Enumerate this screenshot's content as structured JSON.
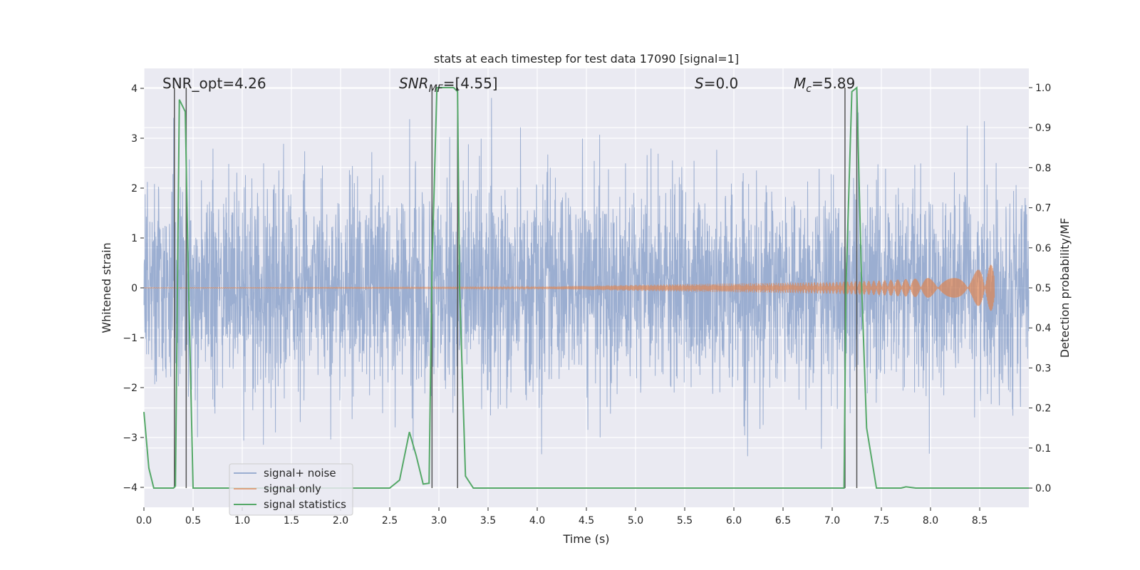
{
  "chart_data": {
    "type": "line",
    "title": "stats at each timestep for test data 17090 [signal=1]",
    "xlabel": "Time (s)",
    "ylabel": "Whitened strain",
    "y2label": "Detection probability/MF",
    "xlim": [
      0.0,
      9.0
    ],
    "ylim": [
      -4.4,
      4.4
    ],
    "y2lim": [
      -0.048,
      1.048
    ],
    "grid": true,
    "legend_position": "lower-left",
    "x_ticks": [
      "0.0",
      "0.5",
      "1.0",
      "1.5",
      "2.0",
      "2.5",
      "3.0",
      "3.5",
      "4.0",
      "4.5",
      "5.0",
      "5.5",
      "6.0",
      "6.5",
      "7.0",
      "7.5",
      "8.0",
      "8.5"
    ],
    "y_ticks": [
      "4",
      "3",
      "2",
      "1",
      "0",
      "−1",
      "−2",
      "−3",
      "−4"
    ],
    "y2_ticks": [
      "1.0",
      "0.9",
      "0.8",
      "0.7",
      "0.6",
      "0.5",
      "0.4",
      "0.3",
      "0.2",
      "0.1",
      "0.0"
    ],
    "annotations": {
      "snr_opt": "SNR_opt=4.26",
      "snr_mf_base": "SNR",
      "snr_mf_sub": "MF",
      "snr_mf_value": "=[4.55]",
      "s_symbol": "S",
      "s_value": "=0.0",
      "mc_symbol": "M",
      "mc_sub": "c",
      "mc_value": "=5.89"
    },
    "series": [
      {
        "name": "signal+ noise",
        "color": "#4c72b0",
        "axis": "left",
        "description_kind": "noise",
        "amplitude_range": [
          -3.6,
          4.0
        ],
        "x_range": [
          0.0,
          9.0
        ]
      },
      {
        "name": "signal only",
        "color": "#dd8452",
        "axis": "left",
        "kind": "chirp",
        "x_range": [
          0.0,
          8.65
        ],
        "envelope": {
          "x": [
            0.0,
            4.0,
            5.0,
            6.0,
            7.0,
            7.5,
            8.0,
            8.4,
            8.6,
            8.65
          ],
          "y": [
            0.005,
            0.02,
            0.06,
            0.09,
            0.12,
            0.15,
            0.2,
            0.3,
            0.45,
            0.5
          ]
        }
      },
      {
        "name": "signal statistics",
        "color": "#55a868",
        "axis": "right",
        "x": [
          0.0,
          0.05,
          0.1,
          0.2,
          0.3,
          0.32,
          0.36,
          0.42,
          0.45,
          0.5,
          1.0,
          2.0,
          2.5,
          2.6,
          2.7,
          2.77,
          2.84,
          2.9,
          2.93,
          2.98,
          3.02,
          3.15,
          3.19,
          3.21,
          3.27,
          3.35,
          4.0,
          5.0,
          6.0,
          7.0,
          7.12,
          7.14,
          7.2,
          7.25,
          7.3,
          7.35,
          7.45,
          7.7,
          7.75,
          7.85,
          8.0,
          8.5,
          9.0
        ],
        "y": [
          0.19,
          0.05,
          0.0,
          0.0,
          0.0,
          0.005,
          0.97,
          0.94,
          0.55,
          0.0,
          0.0,
          0.0,
          0.0,
          0.02,
          0.14,
          0.08,
          0.01,
          0.012,
          0.55,
          1.0,
          1.0,
          1.0,
          0.99,
          0.5,
          0.03,
          0.0,
          0.0,
          0.0,
          0.0,
          0.0,
          0.0,
          0.5,
          0.99,
          1.0,
          0.5,
          0.15,
          0.0,
          0.0,
          0.003,
          0.0,
          0.0,
          0.0,
          0.0
        ]
      }
    ],
    "vertical_lines": [
      0.31,
      0.43,
      2.93,
      3.19,
      7.13,
      7.25
    ],
    "vertical_line_color": "#555555"
  }
}
